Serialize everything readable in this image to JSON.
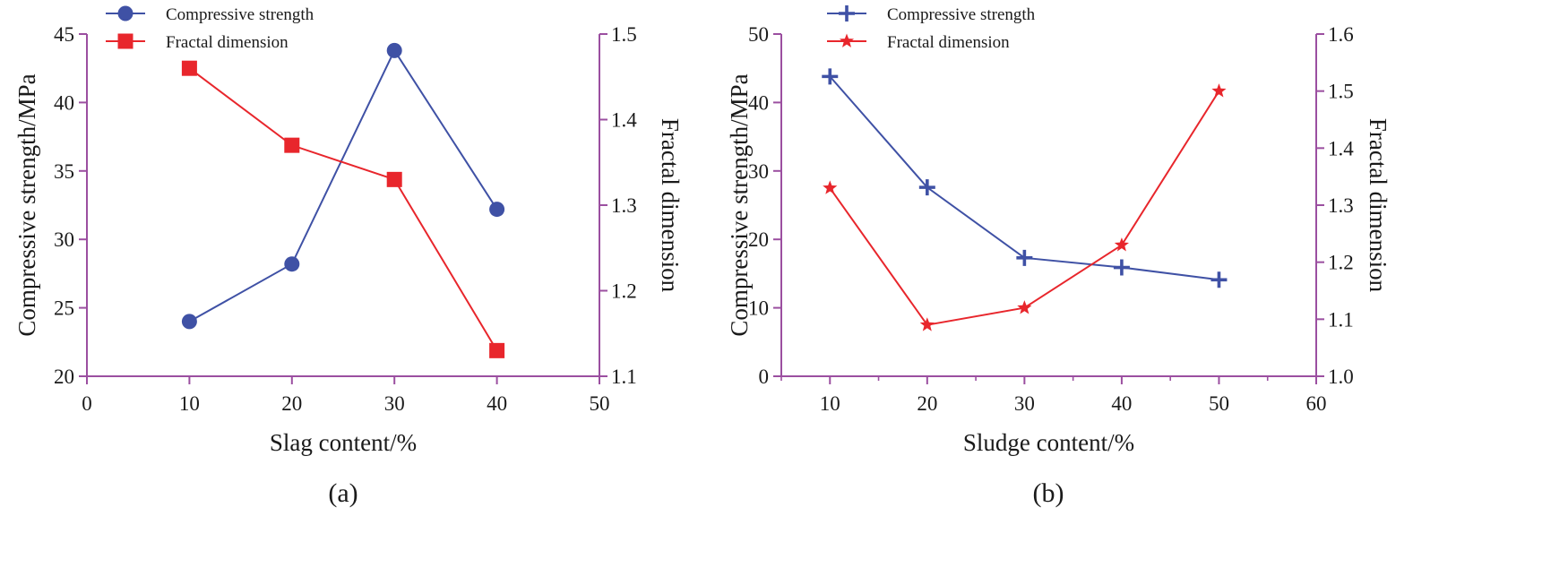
{
  "colors": {
    "axis": "#9b4fa0",
    "blue": "#3f51a5",
    "red": "#e8262c"
  },
  "chart_data": [
    {
      "type": "line",
      "caption": "(a)",
      "xlabel": "Slag content/%",
      "ylabel_left": "Compressive strength/MPa",
      "ylabel_right": "Fractal dimension",
      "xlim": [
        0,
        50
      ],
      "xticks": [
        0,
        10,
        20,
        30,
        40,
        50
      ],
      "ylim_left": [
        20,
        45
      ],
      "yticks_left": [
        20,
        25,
        30,
        35,
        40,
        45
      ],
      "ylim_right": [
        1.1,
        1.5
      ],
      "yticks_right": [
        "1.1",
        "1.2",
        "1.3",
        "1.4",
        "1.5"
      ],
      "x": [
        10,
        20,
        30,
        40
      ],
      "series": [
        {
          "name": "Compressive strength",
          "axis": "left",
          "marker": "circle",
          "color": "#3f51a5",
          "values": [
            24.0,
            28.2,
            43.8,
            32.2
          ]
        },
        {
          "name": "Fractal dimension",
          "axis": "right",
          "marker": "square",
          "color": "#e8262c",
          "values": [
            1.46,
            1.37,
            1.33,
            1.13
          ]
        }
      ],
      "legend_position": "top-left"
    },
    {
      "type": "line",
      "caption": "(b)",
      "xlabel": "Sludge content/%",
      "ylabel_left": "Compressive strength/MPa",
      "ylabel_right": "Fractal dimension",
      "xlim": [
        5,
        60
      ],
      "xticks": [
        10,
        20,
        30,
        40,
        50,
        60
      ],
      "ylim_left": [
        0,
        50
      ],
      "yticks_left": [
        0,
        10,
        20,
        30,
        40,
        50
      ],
      "ylim_right": [
        1.0,
        1.6
      ],
      "yticks_right": [
        "1.0",
        "1.1",
        "1.2",
        "1.3",
        "1.4",
        "1.5",
        "1.6"
      ],
      "x": [
        10,
        20,
        30,
        40,
        50
      ],
      "series": [
        {
          "name": "Compressive strength",
          "axis": "left",
          "marker": "plus",
          "color": "#3f51a5",
          "values": [
            43.8,
            27.6,
            17.3,
            15.9,
            14.1
          ]
        },
        {
          "name": "Fractal dimension",
          "axis": "right",
          "marker": "star",
          "color": "#e8262c",
          "values": [
            1.33,
            1.09,
            1.12,
            1.23,
            1.5
          ]
        }
      ],
      "legend_position": "top-left"
    }
  ]
}
